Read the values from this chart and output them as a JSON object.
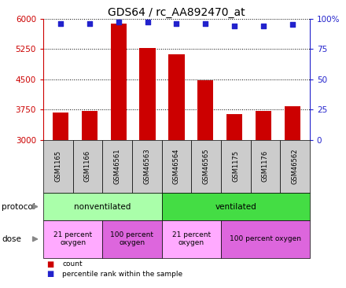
{
  "title": "GDS64 / rc_AA892470_at",
  "samples": [
    "GSM1165",
    "GSM1166",
    "GSM46561",
    "GSM46563",
    "GSM46564",
    "GSM46565",
    "GSM1175",
    "GSM1176",
    "GSM46562"
  ],
  "counts": [
    3680,
    3720,
    5880,
    5280,
    5120,
    4480,
    3630,
    3720,
    3820
  ],
  "percentile_ranks": [
    96,
    96,
    97,
    97,
    96,
    96,
    94,
    94,
    95
  ],
  "ylim_left": [
    3000,
    6000
  ],
  "ylim_right": [
    0,
    100
  ],
  "yticks_left": [
    3000,
    3750,
    4500,
    5250,
    6000
  ],
  "yticks_right": [
    0,
    25,
    50,
    75,
    100
  ],
  "bar_color": "#cc0000",
  "dot_color": "#2222cc",
  "protocol_groups": [
    {
      "label": "nonventilated",
      "start": 0,
      "end": 4,
      "color": "#aaffaa"
    },
    {
      "label": "ventilated",
      "start": 4,
      "end": 9,
      "color": "#44dd44"
    }
  ],
  "dose_groups": [
    {
      "label": "21 percent\noxygen",
      "start": 0,
      "end": 2,
      "color": "#ffaaff"
    },
    {
      "label": "100 percent\noxygen",
      "start": 2,
      "end": 4,
      "color": "#dd66dd"
    },
    {
      "label": "21 percent\noxygen",
      "start": 4,
      "end": 6,
      "color": "#ffaaff"
    },
    {
      "label": "100 percent oxygen",
      "start": 6,
      "end": 9,
      "color": "#dd66dd"
    }
  ],
  "left_axis_color": "#cc0000",
  "right_axis_color": "#2222cc",
  "title_fontsize": 10,
  "tick_fontsize": 7.5,
  "sample_fontsize": 6,
  "label_fontsize": 7.5,
  "annot_fontsize": 6.5
}
